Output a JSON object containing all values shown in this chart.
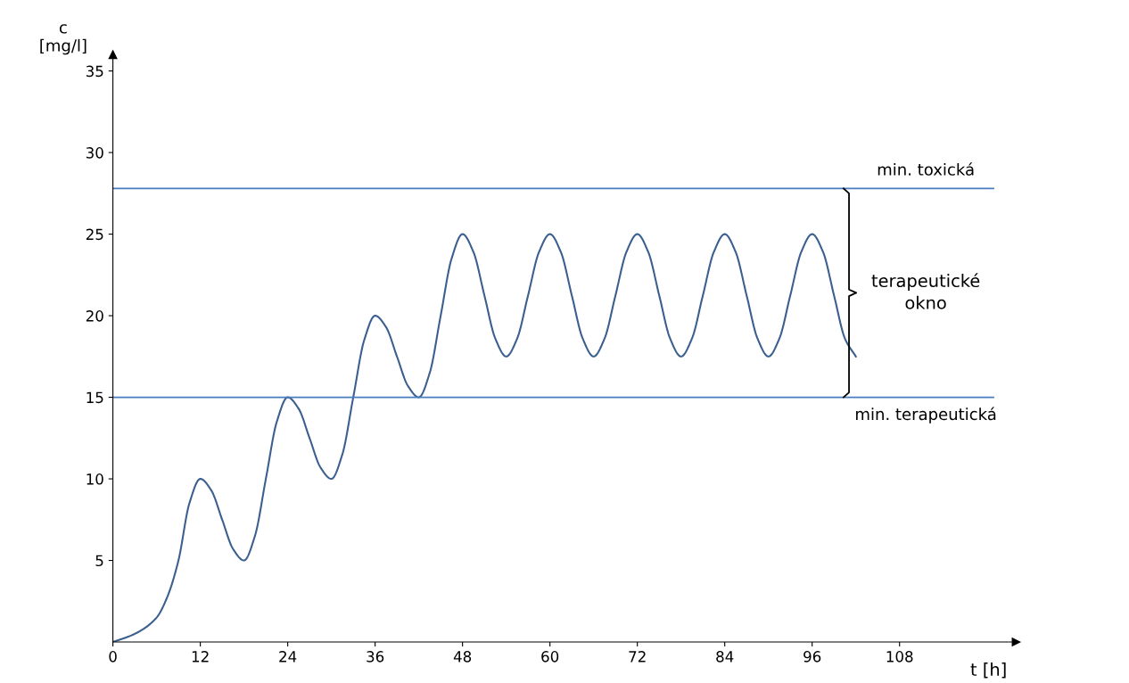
{
  "chart_data": {
    "type": "line",
    "xlabel": "t [h]",
    "ylabel": "c\n[mg/l]",
    "x": [
      0,
      3,
      6,
      7.5,
      9,
      10.5,
      12,
      13.5,
      15,
      16.5,
      18,
      19.5,
      21,
      22.5,
      24,
      25.5,
      27,
      28.5,
      30,
      31.5,
      33,
      34.5,
      36,
      37.5,
      39,
      40.5,
      42,
      43.5,
      45,
      46.5,
      48,
      49.5,
      51,
      52.5,
      54,
      55.5,
      57,
      58.5,
      60,
      61.5,
      63,
      64.5,
      66,
      67.5,
      69,
      70.5,
      72,
      73.5,
      75,
      76.5,
      78,
      79.5,
      81,
      82.5,
      84,
      85.5,
      87,
      88.5,
      90,
      91.5,
      93,
      94.5,
      96,
      97.5,
      99,
      100.5,
      102
    ],
    "series": [
      {
        "color": "#3b5f8f",
        "values": [
          0,
          0.5,
          1.5,
          2.8,
          5,
          8.5,
          10,
          9.3,
          7.5,
          5.7,
          5,
          6.5,
          10,
          13.5,
          15,
          14.3,
          12.5,
          10.7,
          10,
          11.5,
          15,
          18.5,
          20,
          19.3,
          17.5,
          15.7,
          15,
          16.5,
          20,
          23.5,
          25,
          23.9,
          21.25,
          18.6,
          17.5,
          18.6,
          21.25,
          23.9,
          25,
          23.9,
          21.25,
          18.6,
          17.5,
          18.6,
          21.25,
          23.9,
          25,
          23.9,
          21.25,
          18.6,
          17.5,
          18.6,
          21.25,
          23.9,
          25,
          23.9,
          21.25,
          18.6,
          17.5,
          18.6,
          21.25,
          23.9,
          25,
          23.9,
          21.25,
          18.6,
          17.5
        ]
      }
    ],
    "xlim": [
      0,
      124
    ],
    "ylim": [
      0,
      36
    ],
    "xticks": [
      0,
      12,
      24,
      36,
      48,
      60,
      72,
      84,
      96,
      108
    ],
    "yticks": [
      5,
      10,
      15,
      20,
      25,
      30,
      35
    ],
    "ref_lines": [
      {
        "axis": "y",
        "value": 27.8,
        "label": "min. toxická",
        "color": "#4a7cc0"
      },
      {
        "axis": "y",
        "value": 15,
        "label": "min. terapeutická",
        "color": "#4a7cc0"
      }
    ],
    "annotations": [
      "terapeutické\nokno"
    ],
    "grid": false,
    "marker": "none",
    "line_style": "solid"
  }
}
